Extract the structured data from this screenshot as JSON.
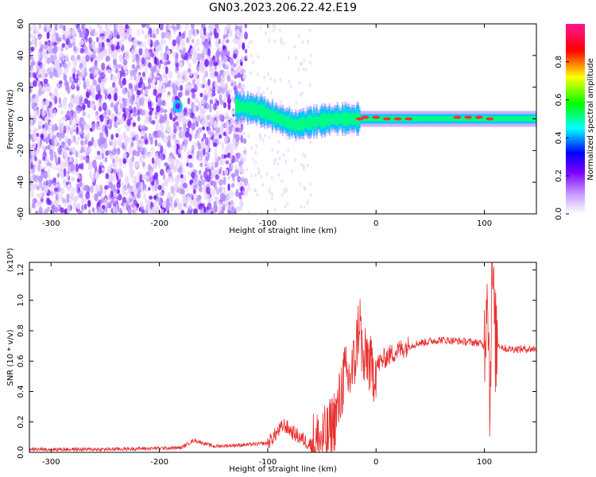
{
  "title": "GN03.2023.206.22.42.E19",
  "chart_data": [
    {
      "type": "heatmap",
      "xlabel": "Height of straight line (km)",
      "ylabel": "Frequency (Hz)",
      "xlim": [
        -320,
        148
      ],
      "ylim": [
        -60,
        60
      ],
      "x_ticks": [
        -300,
        -200,
        -100,
        0,
        100
      ],
      "y_ticks": [
        -60,
        -40,
        -20,
        0,
        20,
        40,
        60
      ],
      "colorbar": {
        "label": "Normalized spectral amplitude",
        "range": [
          0,
          1
        ],
        "ticks": [
          "0.0",
          "0.2",
          "0.4",
          "0.6",
          "0.8"
        ],
        "stops": [
          "#ffffff",
          "#7a00ff",
          "#0000ff",
          "#00ffff",
          "#00ff00",
          "#ffff00",
          "#ff0000",
          "#ff1493"
        ]
      },
      "colors": {
        "noise_light": "#e8d6ff",
        "noise_mid": "#b48cff",
        "noise_dark": "#7a1fff",
        "band_core": "#ff3030",
        "band_mid": "#00ff80",
        "band_edge": "#00c8ff"
      },
      "ridge_frequency_hz": [
        {
          "x": -185,
          "y": 8
        },
        {
          "x": -130,
          "y": 8
        },
        {
          "x": -110,
          "y": 6
        },
        {
          "x": -90,
          "y": 0
        },
        {
          "x": -75,
          "y": -4
        },
        {
          "x": -60,
          "y": -2
        },
        {
          "x": -40,
          "y": 0
        },
        {
          "x": -20,
          "y": 0
        },
        {
          "x": 0,
          "y": 0
        },
        {
          "x": 50,
          "y": 0
        },
        {
          "x": 148,
          "y": 0
        }
      ]
    },
    {
      "type": "line",
      "xlabel": "Height of straight line (km)",
      "ylabel": "SNR (10 * v/v)",
      "scale_label": "(x10⁴)",
      "xlim": [
        -320,
        148
      ],
      "ylim": [
        0,
        1.25
      ],
      "x_ticks": [
        -300,
        -200,
        -100,
        0,
        100
      ],
      "y_ticks": [
        "0.0",
        "0.2",
        "0.4",
        "0.6",
        "0.8",
        "1.0",
        "1.2"
      ],
      "color": "#e83030",
      "series": [
        {
          "x": [
            -320,
            -250,
            -180,
            -168,
            -150,
            -120,
            -100,
            -85,
            -75,
            -60,
            -45,
            -35,
            -30,
            -25,
            -20,
            -15,
            -12,
            -8,
            -4,
            0,
            10,
            20,
            30,
            40,
            60,
            80,
            95,
            100,
            103,
            105,
            107,
            110,
            120,
            148
          ],
          "y": [
            0.02,
            0.02,
            0.03,
            0.08,
            0.04,
            0.05,
            0.06,
            0.18,
            0.12,
            0.05,
            0.1,
            0.28,
            0.5,
            0.48,
            0.58,
            0.9,
            0.55,
            0.65,
            0.52,
            0.57,
            0.63,
            0.67,
            0.7,
            0.72,
            0.74,
            0.73,
            0.72,
            0.7,
            1.2,
            0.3,
            1.25,
            0.72,
            0.68,
            0.68
          ]
        }
      ]
    }
  ]
}
